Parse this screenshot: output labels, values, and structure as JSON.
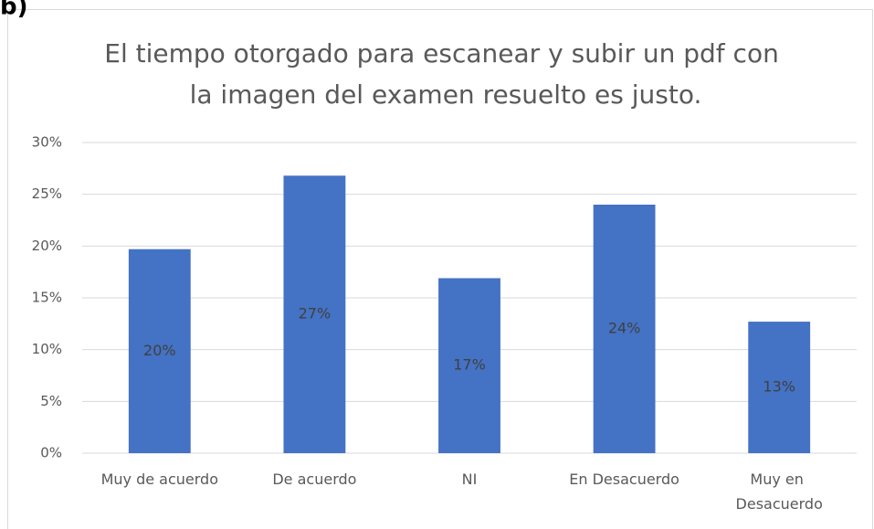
{
  "chart_data": {
    "type": "bar",
    "panel_label": "b)",
    "title": "El tiempo otorgado para escanear y subir un pdf con la imagen del examen resuelto es justo.",
    "categories": [
      "Muy de acuerdo",
      "De acuerdo",
      "NI",
      "En Desacuerdo",
      "Muy en Desacuerdo"
    ],
    "values": [
      19.7,
      26.8,
      16.9,
      24.0,
      12.7
    ],
    "value_labels": [
      "20%",
      "27%",
      "17%",
      "24%",
      "13%"
    ],
    "color": "#4472c4",
    "ylim": [
      0,
      30
    ],
    "yticks": [
      {
        "value": 0,
        "label": "0%"
      },
      {
        "value": 5,
        "label": "5%"
      },
      {
        "value": 10,
        "label": "10%"
      },
      {
        "value": 15,
        "label": "15%"
      },
      {
        "value": 20,
        "label": "20%"
      },
      {
        "value": 25,
        "label": "25%"
      },
      {
        "value": 30,
        "label": "30%"
      }
    ],
    "grid": true
  }
}
